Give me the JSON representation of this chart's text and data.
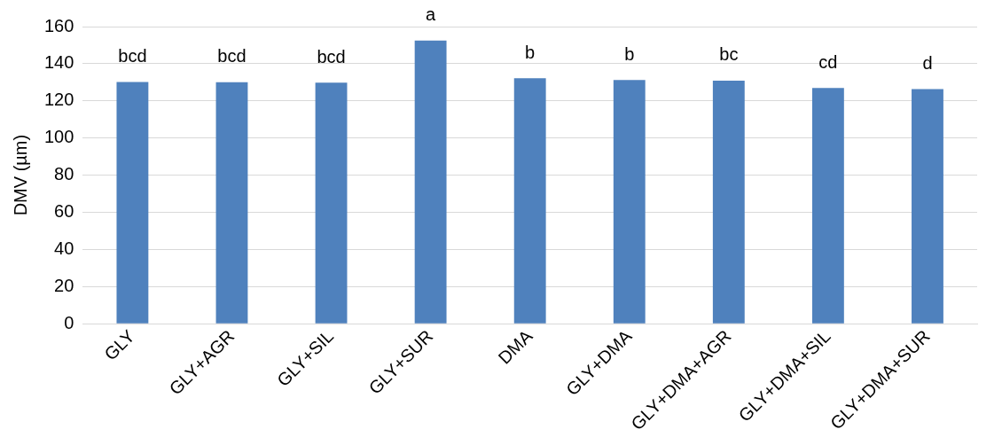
{
  "chart_data": {
    "type": "bar",
    "ylabel": "DMV (µm)",
    "categories": [
      "GLY",
      "GLY+AGR",
      "GLY+SIL",
      "GLY+SUR",
      "DMA",
      "GLY+DMA",
      "GLY+DMA+AGR",
      "GLY+DMA+SIL",
      "GLY+DMA+SUR"
    ],
    "values": [
      130.2,
      130.1,
      129.8,
      152.5,
      132.2,
      131.3,
      130.9,
      127,
      126.4
    ],
    "color": "#4f81bd",
    "ylim": [
      0,
      160
    ],
    "yticks": [
      0,
      20,
      40,
      60,
      80,
      100,
      120,
      140,
      160
    ],
    "grid": "y",
    "legend": false,
    "annotations": [
      {
        "text": "bcd",
        "x": "GLY",
        "y": 130.2
      },
      {
        "text": "bcd",
        "x": "GLY+AGR",
        "y": 130.1
      },
      {
        "text": "bcd",
        "x": "GLY+SIL",
        "y": 129.8
      },
      {
        "text": "a",
        "x": "GLY+SUR",
        "y": 152.5
      },
      {
        "text": "b",
        "x": "DMA",
        "y": 132.2
      },
      {
        "text": "b",
        "x": "GLY+DMA",
        "y": 131.3
      },
      {
        "text": "bc",
        "x": "GLY+DMA+AGR",
        "y": 130.9
      },
      {
        "text": "cd",
        "x": "GLY+DMA+SIL",
        "y": 127
      },
      {
        "text": "d",
        "x": "GLY+DMA+SUR",
        "y": 126.4
      }
    ]
  }
}
